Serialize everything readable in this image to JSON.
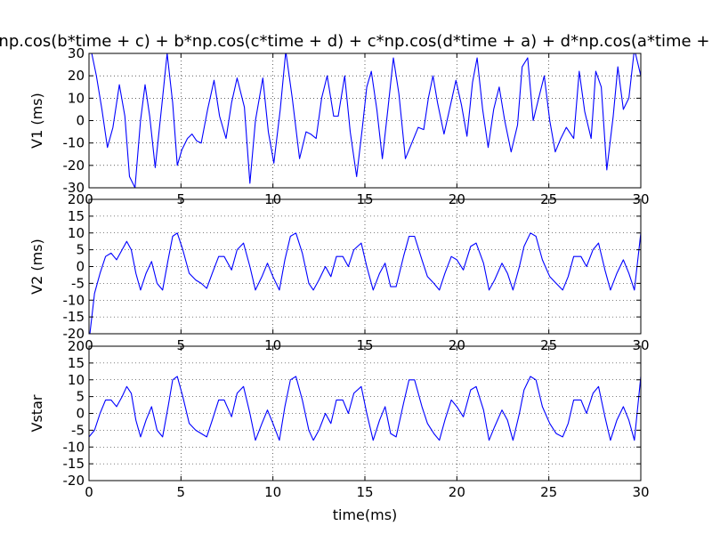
{
  "figure": {
    "title": "np.cos(b*time + c) + b*np.cos(c*time + d) + c*np.cos(d*time + a) + d*np.cos(a*time + b)"
  },
  "chart_data": [
    {
      "type": "line",
      "title": "np.cos(b*time + c) + b*np.cos(c*time + d) + c*np.cos(d*time + a) + d*np.cos(a*time + b)",
      "xlabel": "",
      "ylabel": "V1 (ms)",
      "xlim": [
        0,
        30
      ],
      "ylim": [
        -30,
        30
      ],
      "xticks": [
        0,
        5,
        10,
        15,
        20,
        25,
        30
      ],
      "yticks": [
        -30,
        -20,
        -10,
        0,
        10,
        20,
        30
      ],
      "grid": true,
      "color": "#0000ff",
      "x": [
        0,
        0.15,
        0.4,
        0.7,
        1.0,
        1.3,
        1.65,
        1.95,
        2.2,
        2.5,
        2.8,
        3.05,
        3.3,
        3.6,
        3.95,
        4.25,
        4.55,
        4.8,
        5.05,
        5.35,
        5.6,
        5.85,
        6.1,
        6.45,
        6.8,
        7.1,
        7.45,
        7.75,
        8.05,
        8.45,
        8.75,
        9.05,
        9.45,
        9.75,
        10.05,
        10.4,
        10.7,
        11.05,
        11.45,
        11.8,
        12.05,
        12.35,
        12.65,
        12.95,
        13.3,
        13.55,
        13.9,
        14.2,
        14.55,
        14.85,
        15.1,
        15.35,
        15.65,
        15.95,
        16.25,
        16.55,
        16.85,
        17.2,
        17.55,
        17.9,
        18.2,
        18.45,
        18.7,
        18.95,
        19.3,
        19.6,
        19.95,
        20.25,
        20.55,
        20.85,
        21.1,
        21.4,
        21.7,
        22.0,
        22.3,
        22.6,
        22.95,
        23.3,
        23.55,
        23.85,
        24.15,
        24.45,
        24.75,
        25.05,
        25.35,
        25.65,
        25.95,
        26.35,
        26.65,
        26.95,
        27.3,
        27.55,
        27.85,
        28.15,
        28.5,
        28.75,
        29.05,
        29.35,
        29.65,
        30.0
      ],
      "y": [
        35,
        30,
        20,
        5,
        -12,
        -3,
        16,
        2,
        -25,
        -30,
        0,
        16,
        2,
        -21,
        6,
        30,
        8,
        -20,
        -13,
        -8,
        -6,
        -9,
        -10,
        5,
        18,
        2,
        -8,
        8,
        19,
        6,
        -28,
        0,
        19,
        -5,
        -19,
        5,
        31,
        10,
        -17,
        -5,
        -6,
        -8,
        10,
        20,
        2,
        2,
        20,
        -5,
        -25,
        -4,
        15,
        22,
        5,
        -17,
        5,
        28,
        12,
        -17,
        -10,
        -3,
        -4,
        10,
        20,
        8,
        -6,
        5,
        18,
        7,
        -7,
        17,
        28,
        5,
        -12,
        5,
        15,
        0,
        -14,
        -2,
        24,
        28,
        0,
        10,
        20,
        0,
        -14,
        -8,
        -3,
        -8,
        22,
        4,
        -8,
        22,
        15,
        -22,
        2,
        24,
        5,
        10,
        32,
        20
      ]
    },
    {
      "type": "line",
      "xlabel": "",
      "ylabel": "V2 (ms)",
      "xlim": [
        0,
        30
      ],
      "ylim": [
        -20,
        20
      ],
      "xticks": [
        0,
        5,
        10,
        15,
        20,
        25,
        30
      ],
      "yticks": [
        -20,
        -15,
        -10,
        -5,
        0,
        5,
        10,
        15,
        20
      ],
      "grid": true,
      "color": "#0000ff",
      "x": [
        0.05,
        0.3,
        0.6,
        0.9,
        1.2,
        1.5,
        1.8,
        2.05,
        2.3,
        2.55,
        2.8,
        3.1,
        3.4,
        3.7,
        4.0,
        4.3,
        4.55,
        4.8,
        5.1,
        5.45,
        5.8,
        6.1,
        6.4,
        6.7,
        7.05,
        7.35,
        7.75,
        8.05,
        8.4,
        8.75,
        9.05,
        9.4,
        9.7,
        10.0,
        10.35,
        10.65,
        10.95,
        11.25,
        11.6,
        11.95,
        12.2,
        12.5,
        12.85,
        13.15,
        13.45,
        13.8,
        14.1,
        14.4,
        14.8,
        15.1,
        15.45,
        15.8,
        16.1,
        16.4,
        16.7,
        17.1,
        17.4,
        17.7,
        18.1,
        18.4,
        18.75,
        19.05,
        19.35,
        19.7,
        20.0,
        20.35,
        20.75,
        21.05,
        21.45,
        21.75,
        22.05,
        22.45,
        22.75,
        23.05,
        23.4,
        23.65,
        24.0,
        24.3,
        24.65,
        25.05,
        25.4,
        25.75,
        26.05,
        26.35,
        26.75,
        27.05,
        27.4,
        27.7,
        28.05,
        28.35,
        28.7,
        29.05,
        29.35,
        29.65,
        30.0
      ],
      "y": [
        -20,
        -8,
        -2,
        3,
        4,
        2,
        5,
        7.5,
        5,
        -2,
        -7,
        -2,
        1.5,
        -5,
        -7,
        2,
        9,
        10,
        5,
        -2,
        -4,
        -5,
        -6.5,
        -2,
        3,
        3,
        -1,
        5,
        7,
        0,
        -7,
        -3,
        1,
        -3,
        -7,
        2,
        9,
        10,
        4,
        -5,
        -7,
        -4,
        0,
        -3,
        3,
        3,
        0,
        5,
        7,
        0,
        -7,
        -2,
        1,
        -6,
        -6,
        3,
        9,
        9,
        2,
        -3,
        -5,
        -7,
        -2,
        3,
        2,
        -1,
        6,
        7,
        1,
        -7,
        -4,
        1,
        -2,
        -7,
        0,
        6,
        10,
        9,
        2,
        -3,
        -5,
        -7,
        -3,
        3,
        3,
        0,
        5,
        7,
        -1,
        -7,
        -2,
        2,
        -2,
        -7,
        10
      ]
    },
    {
      "type": "line",
      "xlabel": "time(ms)",
      "ylabel": "Vstar",
      "xlim": [
        0,
        30
      ],
      "ylim": [
        -20,
        20
      ],
      "xticks": [
        0,
        5,
        10,
        15,
        20,
        25,
        30
      ],
      "yticks": [
        -20,
        -15,
        -10,
        -5,
        0,
        5,
        10,
        15,
        20
      ],
      "grid": true,
      "color": "#0000ff",
      "x": [
        0.0,
        0.3,
        0.6,
        0.9,
        1.2,
        1.5,
        1.8,
        2.05,
        2.3,
        2.55,
        2.8,
        3.1,
        3.4,
        3.7,
        4.0,
        4.3,
        4.55,
        4.8,
        5.1,
        5.45,
        5.8,
        6.1,
        6.4,
        6.7,
        7.05,
        7.35,
        7.75,
        8.05,
        8.4,
        8.75,
        9.05,
        9.4,
        9.7,
        10.0,
        10.35,
        10.65,
        10.95,
        11.25,
        11.6,
        11.95,
        12.2,
        12.5,
        12.85,
        13.15,
        13.45,
        13.8,
        14.1,
        14.4,
        14.8,
        15.1,
        15.45,
        15.8,
        16.1,
        16.4,
        16.7,
        17.1,
        17.4,
        17.7,
        18.1,
        18.4,
        18.75,
        19.05,
        19.35,
        19.7,
        20.0,
        20.35,
        20.75,
        21.05,
        21.45,
        21.75,
        22.05,
        22.45,
        22.75,
        23.05,
        23.4,
        23.65,
        24.0,
        24.3,
        24.65,
        25.05,
        25.4,
        25.75,
        26.05,
        26.35,
        26.75,
        27.05,
        27.4,
        27.7,
        28.05,
        28.35,
        28.7,
        29.05,
        29.35,
        29.65,
        30.0
      ],
      "y": [
        -7,
        -5,
        0,
        4,
        4,
        2,
        5,
        8,
        6,
        -2,
        -7,
        -2,
        2,
        -5,
        -7,
        2,
        10,
        11,
        5,
        -3,
        -5,
        -6,
        -7,
        -2,
        4,
        4,
        -1,
        6,
        8,
        0,
        -8,
        -3,
        1,
        -3,
        -8,
        2,
        10,
        11,
        4,
        -5,
        -8,
        -5,
        0,
        -3,
        4,
        4,
        0,
        6,
        8,
        0,
        -8,
        -2,
        2,
        -6,
        -7,
        3,
        10,
        10,
        2,
        -3,
        -6,
        -8,
        -2,
        4,
        2,
        -1,
        7,
        8,
        1,
        -8,
        -4,
        1,
        -2,
        -8,
        0,
        7,
        11,
        10,
        2,
        -3,
        -6,
        -7,
        -3,
        4,
        4,
        0,
        6,
        8,
        -1,
        -8,
        -2,
        2,
        -2,
        -8,
        11
      ]
    }
  ]
}
